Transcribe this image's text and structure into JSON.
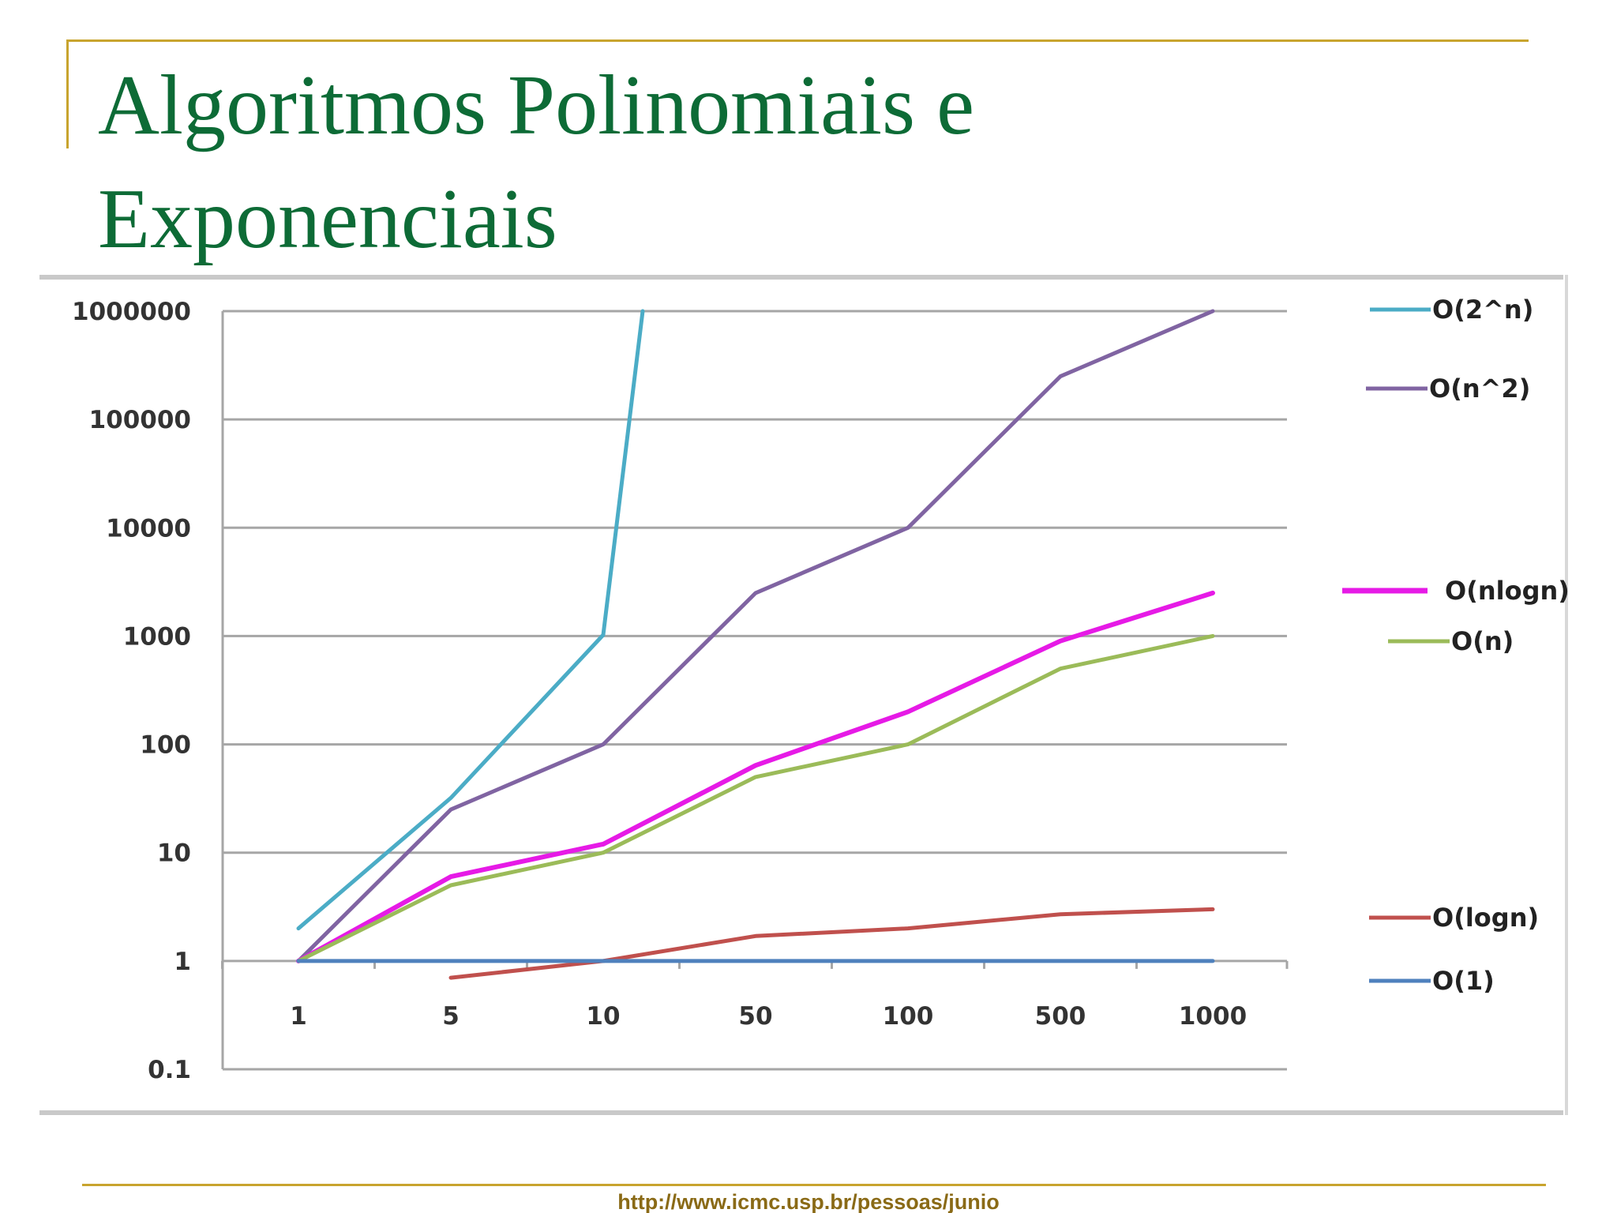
{
  "slide": {
    "title_line1": "Algoritmos Polinomiais e",
    "title_line2": "Exponenciais",
    "footer_url": "http://www.icmc.usp.br/pessoas/junio"
  },
  "chart_data": {
    "type": "line",
    "title": "",
    "xlabel": "",
    "ylabel": "",
    "y_scale": "log",
    "ylim": [
      0.1,
      1000000
    ],
    "y_ticks": [
      "0.1",
      "1",
      "10",
      "100",
      "1000",
      "10000",
      "100000",
      "1000000"
    ],
    "categories": [
      "1",
      "5",
      "10",
      "50",
      "100",
      "500",
      "1000"
    ],
    "grid": true,
    "legend_position": "right",
    "series": [
      {
        "name": "O(2^n)",
        "color": "#4bacc6",
        "values": [
          2,
          32,
          1024,
          null,
          null,
          null,
          null
        ],
        "overflow": true
      },
      {
        "name": "O(n^2)",
        "color": "#8064a2",
        "values": [
          1,
          25,
          100,
          2500,
          10000,
          250000,
          1000000
        ]
      },
      {
        "name": "O(nlogn)",
        "color": "#e61ae6",
        "values": [
          1,
          6,
          12,
          64,
          200,
          900,
          2500
        ]
      },
      {
        "name": "O(n)",
        "color": "#9bbb59",
        "values": [
          1,
          5,
          10,
          50,
          100,
          500,
          1000
        ]
      },
      {
        "name": "O(logn)",
        "color": "#c0504d",
        "values": [
          null,
          0.7,
          1,
          1.7,
          2,
          2.7,
          3
        ]
      },
      {
        "name": "O(1)",
        "color": "#4f81bd",
        "values": [
          1,
          1,
          1,
          1,
          1,
          1,
          1
        ]
      }
    ]
  }
}
